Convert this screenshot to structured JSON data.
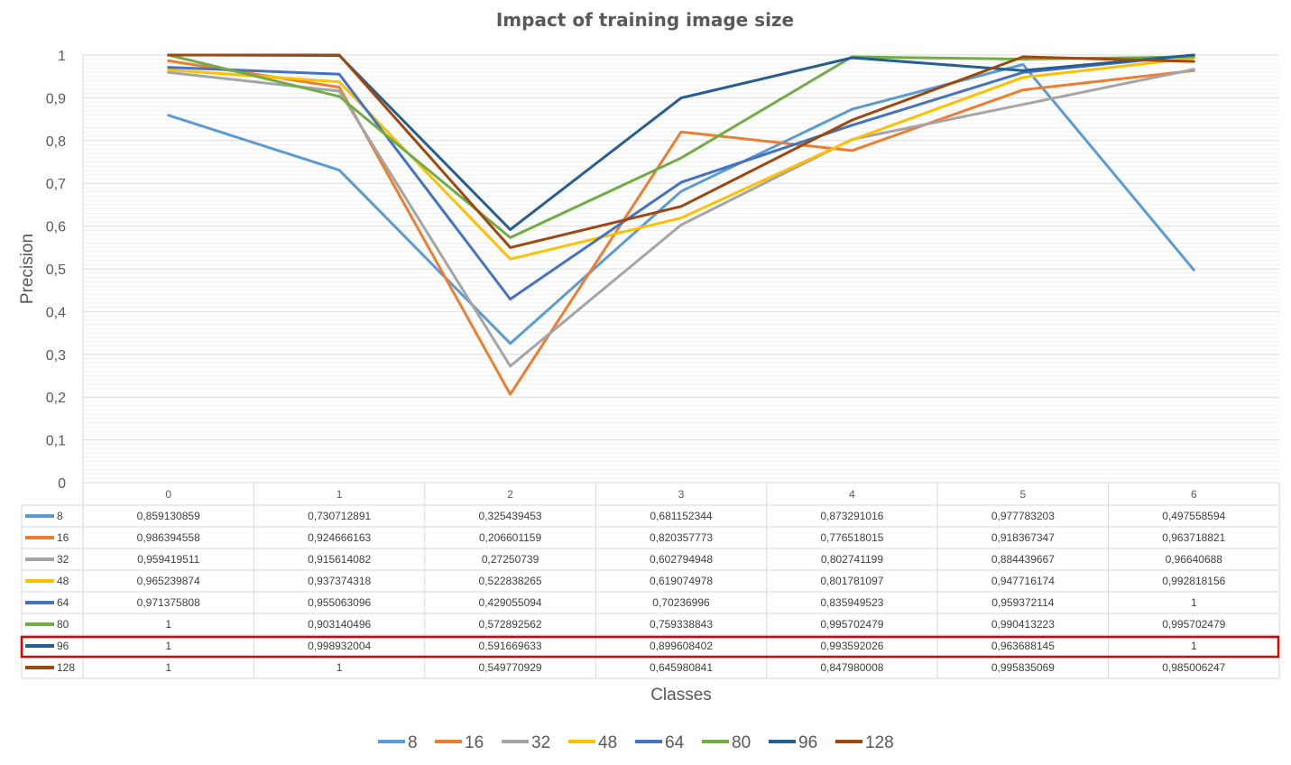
{
  "chart_data": {
    "type": "line",
    "title": "Impact of training image size",
    "xlabel": "Classes",
    "ylabel": "Precision",
    "categories": [
      "0",
      "1",
      "2",
      "3",
      "4",
      "5",
      "6"
    ],
    "ylim": [
      0,
      1
    ],
    "yticks": [
      "0",
      "0,1",
      "0,2",
      "0,3",
      "0,4",
      "0,5",
      "0,6",
      "0,7",
      "0,8",
      "0,9",
      "1"
    ],
    "grid": true,
    "legend_placement": "bottom",
    "highlighted_series": "96",
    "series": [
      {
        "name": "8",
        "color": "#5B9BD5",
        "values": [
          0.859130859,
          0.730712891,
          0.325439453,
          0.681152344,
          0.873291016,
          0.977783203,
          0.497558594
        ],
        "labels": [
          "0,859130859",
          "0,730712891",
          "0,325439453",
          "0,681152344",
          "0,873291016",
          "0,977783203",
          "0,497558594"
        ]
      },
      {
        "name": "16",
        "color": "#ED7D31",
        "values": [
          0.986394558,
          0.924666163,
          0.206601159,
          0.820357773,
          0.776518015,
          0.918367347,
          0.963718821
        ],
        "labels": [
          "0,986394558",
          "0,924666163",
          "0,206601159",
          "0,820357773",
          "0,776518015",
          "0,918367347",
          "0,963718821"
        ]
      },
      {
        "name": "32",
        "color": "#A5A5A5",
        "values": [
          0.959419511,
          0.915614082,
          0.27250739,
          0.602794948,
          0.802741199,
          0.884439667,
          0.96640688
        ],
        "labels": [
          "0,959419511",
          "0,915614082",
          "0,27250739",
          "0,602794948",
          "0,802741199",
          "0,884439667",
          "0,96640688"
        ]
      },
      {
        "name": "48",
        "color": "#FFC000",
        "values": [
          0.965239874,
          0.937374318,
          0.522838265,
          0.619074978,
          0.801781097,
          0.947716174,
          0.992818156
        ],
        "labels": [
          "0,965239874",
          "0,937374318",
          "0,522838265",
          "0,619074978",
          "0,801781097",
          "0,947716174",
          "0,992818156"
        ]
      },
      {
        "name": "64",
        "color": "#4472C4",
        "values": [
          0.971375808,
          0.955063096,
          0.429055094,
          0.70236996,
          0.835949523,
          0.959372114,
          1
        ],
        "labels": [
          "0,971375808",
          "0,955063096",
          "0,429055094",
          "0,70236996",
          "0,835949523",
          "0,959372114",
          "1"
        ]
      },
      {
        "name": "80",
        "color": "#70AD47",
        "values": [
          1,
          0.903140496,
          0.572892562,
          0.759338843,
          0.995702479,
          0.990413223,
          0.995702479
        ],
        "labels": [
          "1",
          "0,903140496",
          "0,572892562",
          "0,759338843",
          "0,995702479",
          "0,990413223",
          "0,995702479"
        ]
      },
      {
        "name": "96",
        "color": "#255E91",
        "values": [
          1,
          0.998932004,
          0.591669633,
          0.899608402,
          0.993592026,
          0.963688145,
          1
        ],
        "labels": [
          "1",
          "0,998932004",
          "0,591669633",
          "0,899608402",
          "0,993592026",
          "0,963688145",
          "1"
        ]
      },
      {
        "name": "128",
        "color": "#9E480E",
        "values": [
          1,
          1,
          0.549770929,
          0.645980841,
          0.847980008,
          0.995835069,
          0.985006247
        ],
        "labels": [
          "1",
          "1",
          "0,549770929",
          "0,645980841",
          "0,847980008",
          "0,995835069",
          "0,985006247"
        ]
      }
    ]
  }
}
